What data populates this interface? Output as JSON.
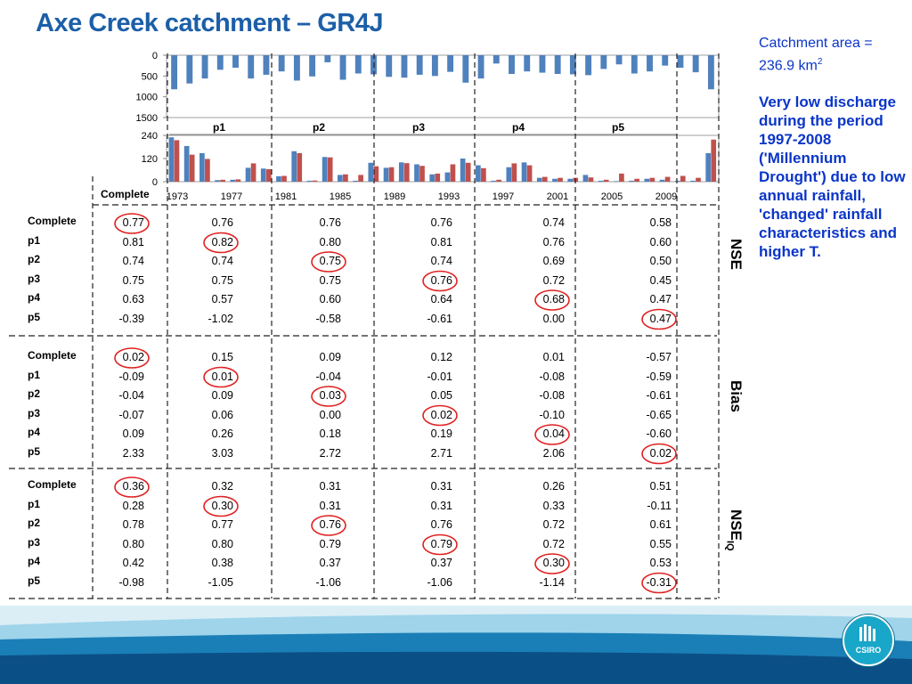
{
  "slide": {
    "title": "Axe Creek catchment – GR4J",
    "note_area": "Catchment area = 236.9 km",
    "note_area_sup": "2",
    "note_body": "Very low discharge during the period 1997-2008 ('Millennium Drought') due to low annual rainfall, 'changed' rainfall characteristics and higher T.",
    "header_label": "Complete",
    "logo_text": "CSIRO"
  },
  "colors": {
    "title": "#1c5fa8",
    "note": "#0a35c8",
    "bar_a": "#4f81bd",
    "bar_b": "#c0504d",
    "highlight": "#e02020"
  },
  "chart_data": {
    "type": "bar",
    "rain_ticks": [
      "0",
      "500",
      "1000",
      "1500"
    ],
    "flow_ticks": [
      "240",
      "120",
      "0"
    ],
    "x_ticks": [
      "1973",
      "1977",
      "1981",
      "1985",
      "1989",
      "1993",
      "1997",
      "2001",
      "2005",
      "2009"
    ],
    "periods": [
      "p1",
      "p2",
      "p3",
      "p4",
      "p5"
    ],
    "rainfall": [
      820,
      680,
      560,
      350,
      300,
      560,
      470,
      390,
      610,
      510,
      170,
      590,
      440,
      460,
      520,
      540,
      470,
      500,
      400,
      660,
      560,
      200,
      450,
      390,
      420,
      450,
      460,
      480,
      330,
      220,
      440,
      390,
      250,
      300,
      410,
      820
    ],
    "flow_obs": [
      230,
      185,
      148,
      8,
      10,
      72,
      68,
      28,
      158,
      5,
      128,
      35,
      5,
      98,
      72,
      100,
      90,
      38,
      48,
      120,
      85,
      5,
      75,
      100,
      20,
      15,
      15,
      35,
      5,
      3,
      5,
      15,
      10,
      5,
      5,
      148
    ],
    "flow_sim": [
      215,
      140,
      118,
      10,
      12,
      95,
      65,
      30,
      148,
      6,
      126,
      38,
      35,
      80,
      75,
      96,
      82,
      42,
      90,
      98,
      70,
      10,
      95,
      85,
      25,
      20,
      20,
      22,
      10,
      42,
      15,
      20,
      25,
      30,
      20,
      218
    ]
  },
  "tables": [
    {
      "metric": "NSE",
      "metric_sub": "",
      "row_labels": [
        "Complete",
        "p1",
        "p2",
        "p3",
        "p4",
        "p5"
      ],
      "rows": [
        [
          "0.77",
          "0.76",
          "0.76",
          "0.76",
          "0.74",
          "0.58"
        ],
        [
          "0.81",
          "0.82",
          "0.80",
          "0.81",
          "0.76",
          "0.60"
        ],
        [
          "0.74",
          "0.74",
          "0.75",
          "0.74",
          "0.69",
          "0.50"
        ],
        [
          "0.75",
          "0.75",
          "0.75",
          "0.76",
          "0.72",
          "0.45"
        ],
        [
          "0.63",
          "0.57",
          "0.60",
          "0.64",
          "0.68",
          "0.47"
        ],
        [
          "-0.39",
          "-1.02",
          "-0.58",
          "-0.61",
          "0.00",
          "0.47"
        ]
      ]
    },
    {
      "metric": "Bias",
      "metric_sub": "",
      "row_labels": [
        "Complete",
        "p1",
        "p2",
        "p3",
        "p4",
        "p5"
      ],
      "rows": [
        [
          "0.02",
          "0.15",
          "0.09",
          "0.12",
          "0.01",
          "-0.57"
        ],
        [
          "-0.09",
          "0.01",
          "-0.04",
          "-0.01",
          "-0.08",
          "-0.59"
        ],
        [
          "-0.04",
          "0.09",
          "0.03",
          "0.05",
          "-0.08",
          "-0.61"
        ],
        [
          "-0.07",
          "0.06",
          "0.00",
          "0.02",
          "-0.10",
          "-0.65"
        ],
        [
          "0.09",
          "0.26",
          "0.18",
          "0.19",
          "0.04",
          "-0.60"
        ],
        [
          "2.33",
          "3.03",
          "2.72",
          "2.71",
          "2.06",
          "0.02"
        ]
      ]
    },
    {
      "metric": "NSE",
      "metric_sub": "IQ",
      "row_labels": [
        "Complete",
        "p1",
        "p2",
        "p3",
        "p4",
        "p5"
      ],
      "rows": [
        [
          "0.36",
          "0.32",
          "0.31",
          "0.31",
          "0.26",
          "0.51"
        ],
        [
          "0.28",
          "0.30",
          "0.31",
          "0.31",
          "0.33",
          "-0.11"
        ],
        [
          "0.78",
          "0.77",
          "0.76",
          "0.76",
          "0.72",
          "0.61"
        ],
        [
          "0.80",
          "0.80",
          "0.79",
          "0.79",
          "0.72",
          "0.55"
        ],
        [
          "0.42",
          "0.38",
          "0.37",
          "0.37",
          "0.30",
          "0.53"
        ],
        [
          "-0.98",
          "-1.05",
          "-1.06",
          "-1.06",
          "-1.14",
          "-0.31"
        ]
      ]
    }
  ]
}
